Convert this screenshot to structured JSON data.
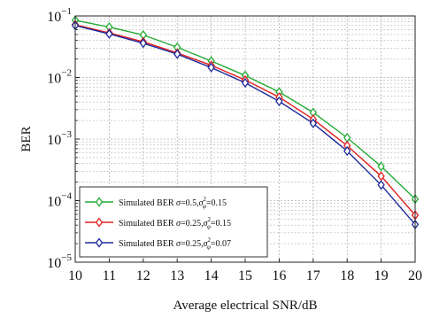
{
  "chart_data": {
    "type": "line",
    "xlabel": "Average electrical SNR/dB",
    "ylabel": "BER",
    "x": [
      10,
      11,
      12,
      13,
      14,
      15,
      16,
      17,
      18,
      19,
      20
    ],
    "xlim": [
      10,
      20
    ],
    "ylim": [
      1e-05,
      0.1
    ],
    "yscale": "log",
    "grid": true,
    "legend_position": "bottom-left",
    "x_tick_labels": [
      "10",
      "11",
      "12",
      "13",
      "14",
      "15",
      "16",
      "17",
      "18",
      "19",
      "20"
    ],
    "y_tick_labels": [
      {
        "base": "10",
        "exp": "-1"
      },
      {
        "base": "10",
        "exp": "-2"
      },
      {
        "base": "10",
        "exp": "-3"
      },
      {
        "base": "10",
        "exp": "-4"
      },
      {
        "base": "10",
        "exp": "-5"
      }
    ],
    "series": [
      {
        "name": "Simulated BER σ=0.5,σ²φ=0.15",
        "legend": {
          "prefix": "Simulated BER ",
          "sigma": "σ",
          "eq1": "=0.5,",
          "sigma2": "σ",
          "sup": "2",
          "sub": "φ",
          "eq2": "=0.15"
        },
        "color": "#22aa33",
        "marker": "diamond",
        "values": [
          0.085,
          0.066,
          0.049,
          0.031,
          0.0185,
          0.0108,
          0.0058,
          0.0027,
          0.00105,
          0.00036,
          0.000106
        ]
      },
      {
        "name": "Simulated BER σ=0.25,σ²φ=0.15",
        "legend": {
          "prefix": "Simulated BER ",
          "sigma": "σ",
          "eq1": "=0.25,",
          "sigma2": "σ",
          "sup": "2",
          "sub": "φ",
          "eq2": "=0.15"
        },
        "color": "#e02020",
        "marker": "diamond",
        "values": [
          0.072,
          0.053,
          0.038,
          0.025,
          0.0158,
          0.0091,
          0.0048,
          0.0021,
          0.00078,
          0.00025,
          5.8e-05
        ]
      },
      {
        "name": "Simulated BER σ=0.25,σ²φ=0.07",
        "legend": {
          "prefix": "Simulated BER ",
          "sigma": "σ",
          "eq1": "=0.25,",
          "sigma2": "σ",
          "sup": "2",
          "sub": "φ",
          "eq2": "=0.07"
        },
        "color": "#1f2a9a",
        "marker": "diamond",
        "values": [
          0.07,
          0.051,
          0.036,
          0.024,
          0.0145,
          0.0082,
          0.0041,
          0.0018,
          0.00064,
          0.00018,
          4.1e-05
        ]
      }
    ]
  }
}
